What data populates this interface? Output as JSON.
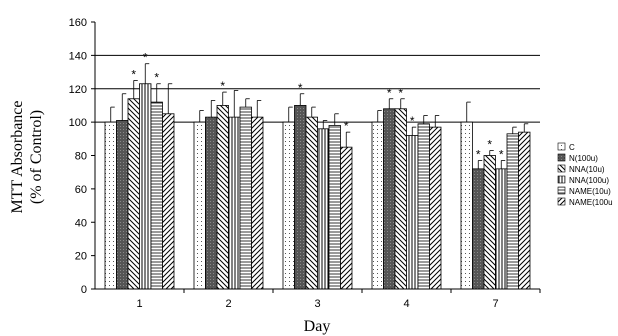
{
  "chart_data": {
    "type": "bar",
    "title": "",
    "xlabel": "Day",
    "ylabel_lines": [
      "MTT Absorbance",
      "(% of  Control)"
    ],
    "ylim": [
      0,
      160
    ],
    "yticks": [
      0,
      20,
      40,
      60,
      80,
      100,
      120,
      140,
      160
    ],
    "categories": [
      "1",
      "2",
      "3",
      "4",
      "7"
    ],
    "gridlines": [
      100,
      120,
      140
    ],
    "legend_position": "right",
    "significance_marker": "*",
    "series": [
      {
        "name": "C",
        "pattern": "dots",
        "values": [
          100,
          100,
          100,
          100,
          100
        ],
        "errors": [
          9,
          7,
          9,
          7,
          12
        ],
        "significant": [
          false,
          false,
          false,
          false,
          false
        ]
      },
      {
        "name": "N(100u)",
        "pattern": "dark",
        "values": [
          101,
          103,
          110,
          108,
          72
        ],
        "errors": [
          16,
          10,
          7,
          6,
          5
        ],
        "significant": [
          false,
          false,
          true,
          true,
          true
        ]
      },
      {
        "name": "NNA(10u)",
        "pattern": "diag-back",
        "values": [
          114,
          110,
          103,
          108,
          80
        ],
        "errors": [
          11,
          8,
          6,
          6,
          3
        ],
        "significant": [
          true,
          true,
          false,
          true,
          true
        ]
      },
      {
        "name": "NNA(100u)",
        "pattern": "vertical",
        "values": [
          123,
          103,
          96,
          92,
          72
        ],
        "errors": [
          12,
          16,
          5,
          5,
          5
        ],
        "significant": [
          true,
          false,
          false,
          true,
          true
        ]
      },
      {
        "name": "NAME(10u)",
        "pattern": "horizontal",
        "values": [
          112,
          109,
          98,
          99,
          93
        ],
        "errors": [
          11,
          5,
          7,
          5,
          4
        ],
        "significant": [
          true,
          false,
          false,
          false,
          false
        ]
      },
      {
        "name": "NAME(100u",
        "pattern": "diag-fwd",
        "values": [
          105,
          103,
          85,
          97,
          94
        ],
        "errors": [
          18,
          10,
          9,
          7,
          5
        ],
        "significant": [
          false,
          false,
          true,
          false,
          false
        ]
      }
    ]
  }
}
